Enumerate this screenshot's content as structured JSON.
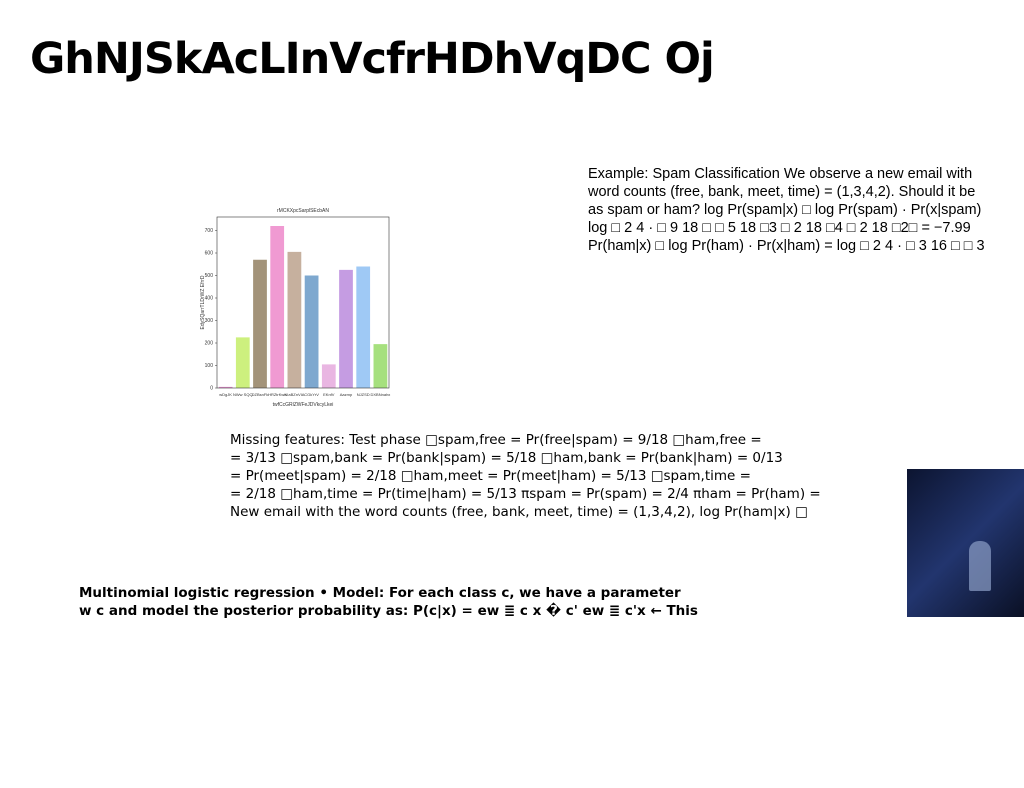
{
  "title": "GhNJSkAcLInVcfrHDhVqDC Oj",
  "example": [
    "Example: Spam Classification We observe a new email with",
    "word counts (free, bank, meet, time) = (1,3,4,2). Should it be",
    "as spam or ham? log Pr(spam|x) □ log Pr(spam) · Pr(x|spam)",
    "log □ 2 4 · □ 9 18 □ □ 5 18 □3 □ 2 18 □4 □ 2 18 □2□ = −7.99",
    "Pr(ham|x) □ log Pr(ham) · Pr(x|ham) = log □ 2 4 · □ 3 16 □ □ 3"
  ],
  "missing": [
    "Missing features: Test phase □spam,free = Pr(free|spam) = 9/18 □ham,free =",
    "= 3/13 □spam,bank = Pr(bank|spam) = 5/18 □ham,bank = Pr(bank|ham) = 0/13",
    "= Pr(meet|spam) = 2/18 □ham,meet = Pr(meet|ham) = 5/13 □spam,time =",
    "= 2/18 □ham,time = Pr(time|ham) = 5/13 πspam = Pr(spam) = 2/4 πham = Pr(ham) =",
    "New email with the word counts (free, bank, meet, time) = (1,3,4,2), log Pr(ham|x) □"
  ],
  "multinomial": [
    "Multinomial logistic regression • Model: For each class c, we have a parameter",
    "w c and model the posterior probability as: P(c|x) = ew ≣ c x � c' ew ≣ c'x ← This"
  ],
  "chart_data": {
    "type": "bar",
    "title": "rMCKXpcSarplSEcbAN",
    "x_label": "twfCcGRlZWFeJDVkcyLkei",
    "y_label": "EdySQarrTLDrWZ EfrrD",
    "categories": [
      "wDgJK",
      "NWw SQQ",
      "DZBsnFk",
      "HRZtrKwx",
      "NIaBZnVIA",
      "CGkYrV",
      "EKnfV",
      "Aazmp",
      "NJZSD",
      "DXBNnahx"
    ],
    "values": [
      5,
      225,
      570,
      720,
      605,
      500,
      105,
      525,
      540,
      195
    ],
    "colors": [
      "#e58fd0",
      "#cdf07e",
      "#a39379",
      "#f09ad2",
      "#c6b09e",
      "#7ea8cf",
      "#e9b6e2",
      "#c59ce2",
      "#9fc9f5",
      "#a6e07e"
    ],
    "ylim": [
      0,
      760
    ],
    "yticks": [
      0,
      100,
      200,
      300,
      400,
      500,
      600,
      700
    ]
  }
}
